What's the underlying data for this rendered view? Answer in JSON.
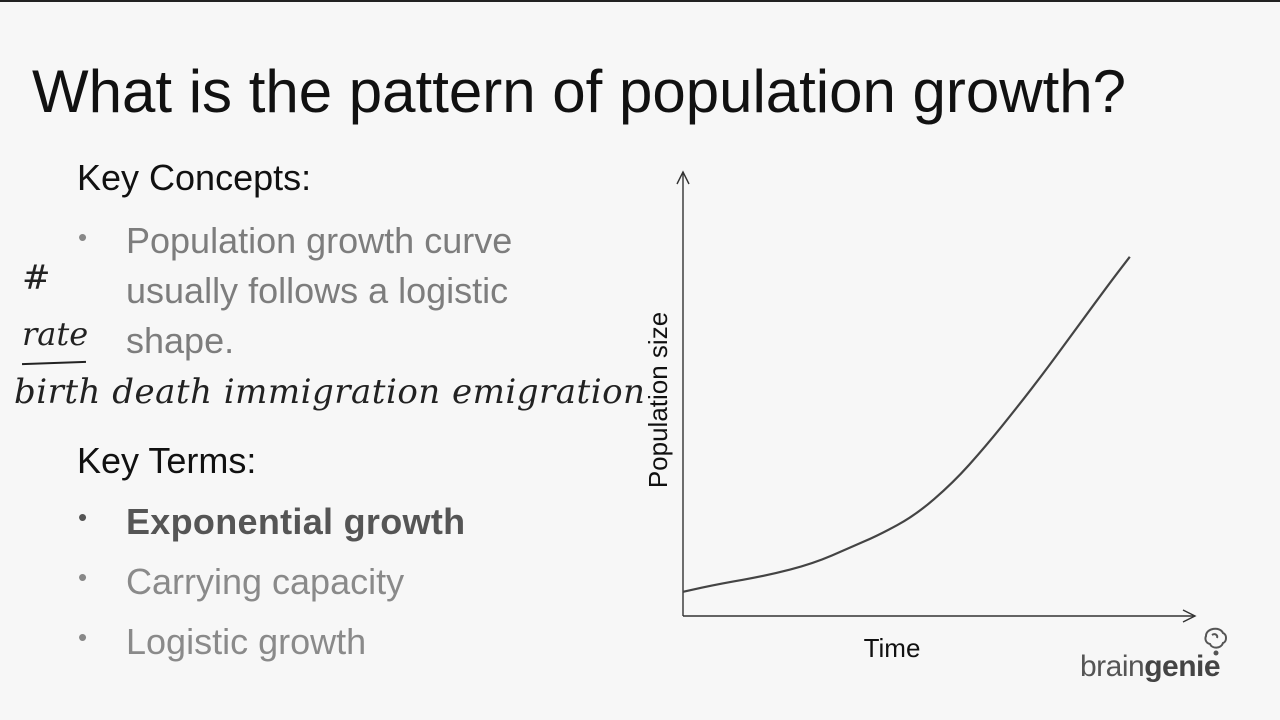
{
  "slide": {
    "title": "What is the pattern of population growth?",
    "key_concepts": {
      "heading": "Key Concepts:",
      "bullets": [
        "Population growth curve usually follows a logistic shape."
      ]
    },
    "key_terms": {
      "heading": "Key Terms:",
      "items": [
        {
          "label": "Exponential growth",
          "state": "active"
        },
        {
          "label": "Carrying capacity",
          "state": "dim"
        },
        {
          "label": "Logistic growth",
          "state": "dim"
        }
      ]
    },
    "annotations": {
      "hash": "#",
      "rate": "rate",
      "factors": "birth  death  immigration  emigration"
    },
    "bullet_glyph": "•"
  },
  "chart_data": {
    "type": "line",
    "xlabel": "Time",
    "ylabel": "Population size",
    "grid": false,
    "tick_labels": false,
    "series": [
      {
        "x": [
          0,
          0.08,
          0.18,
          0.28,
          0.36,
          0.42,
          0.5,
          0.58,
          0.65,
          0.72,
          0.78,
          0.85,
          0.92,
          0.96
        ],
        "values": [
          0.06,
          0.08,
          0.1,
          0.13,
          0.17,
          0.2,
          0.25,
          0.33,
          0.42,
          0.52,
          0.61,
          0.72,
          0.83,
          0.89
        ]
      }
    ],
    "xlim": [
      0,
      1.1
    ],
    "ylim": [
      0,
      1.1
    ]
  },
  "branding": {
    "part1": "brain",
    "part2": "genie"
  }
}
